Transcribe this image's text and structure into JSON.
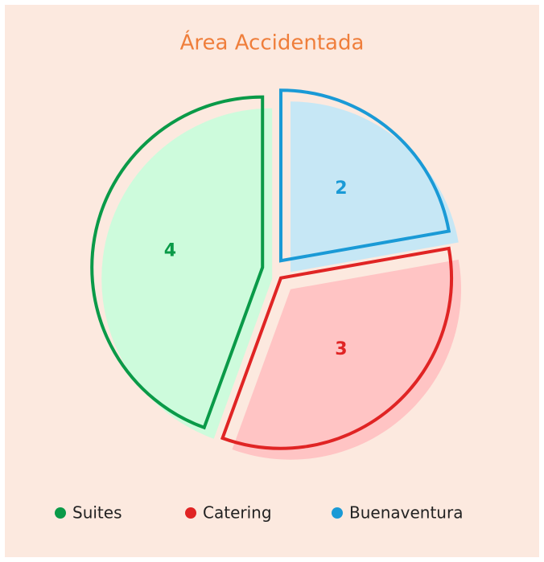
{
  "chart_data": {
    "type": "pie",
    "title": "Área Accidentada",
    "categories": [
      "Buenaventura",
      "Catering",
      "Suites"
    ],
    "values": [
      2,
      3,
      4
    ],
    "colors": [
      "#1a9ad6",
      "#e02424",
      "#0a9a48"
    ],
    "fill_colors": [
      "#c6e7f5",
      "#ffc4c4",
      "#cdfbdc"
    ],
    "legend_order": [
      2,
      1,
      0
    ],
    "legend": "bottom"
  }
}
